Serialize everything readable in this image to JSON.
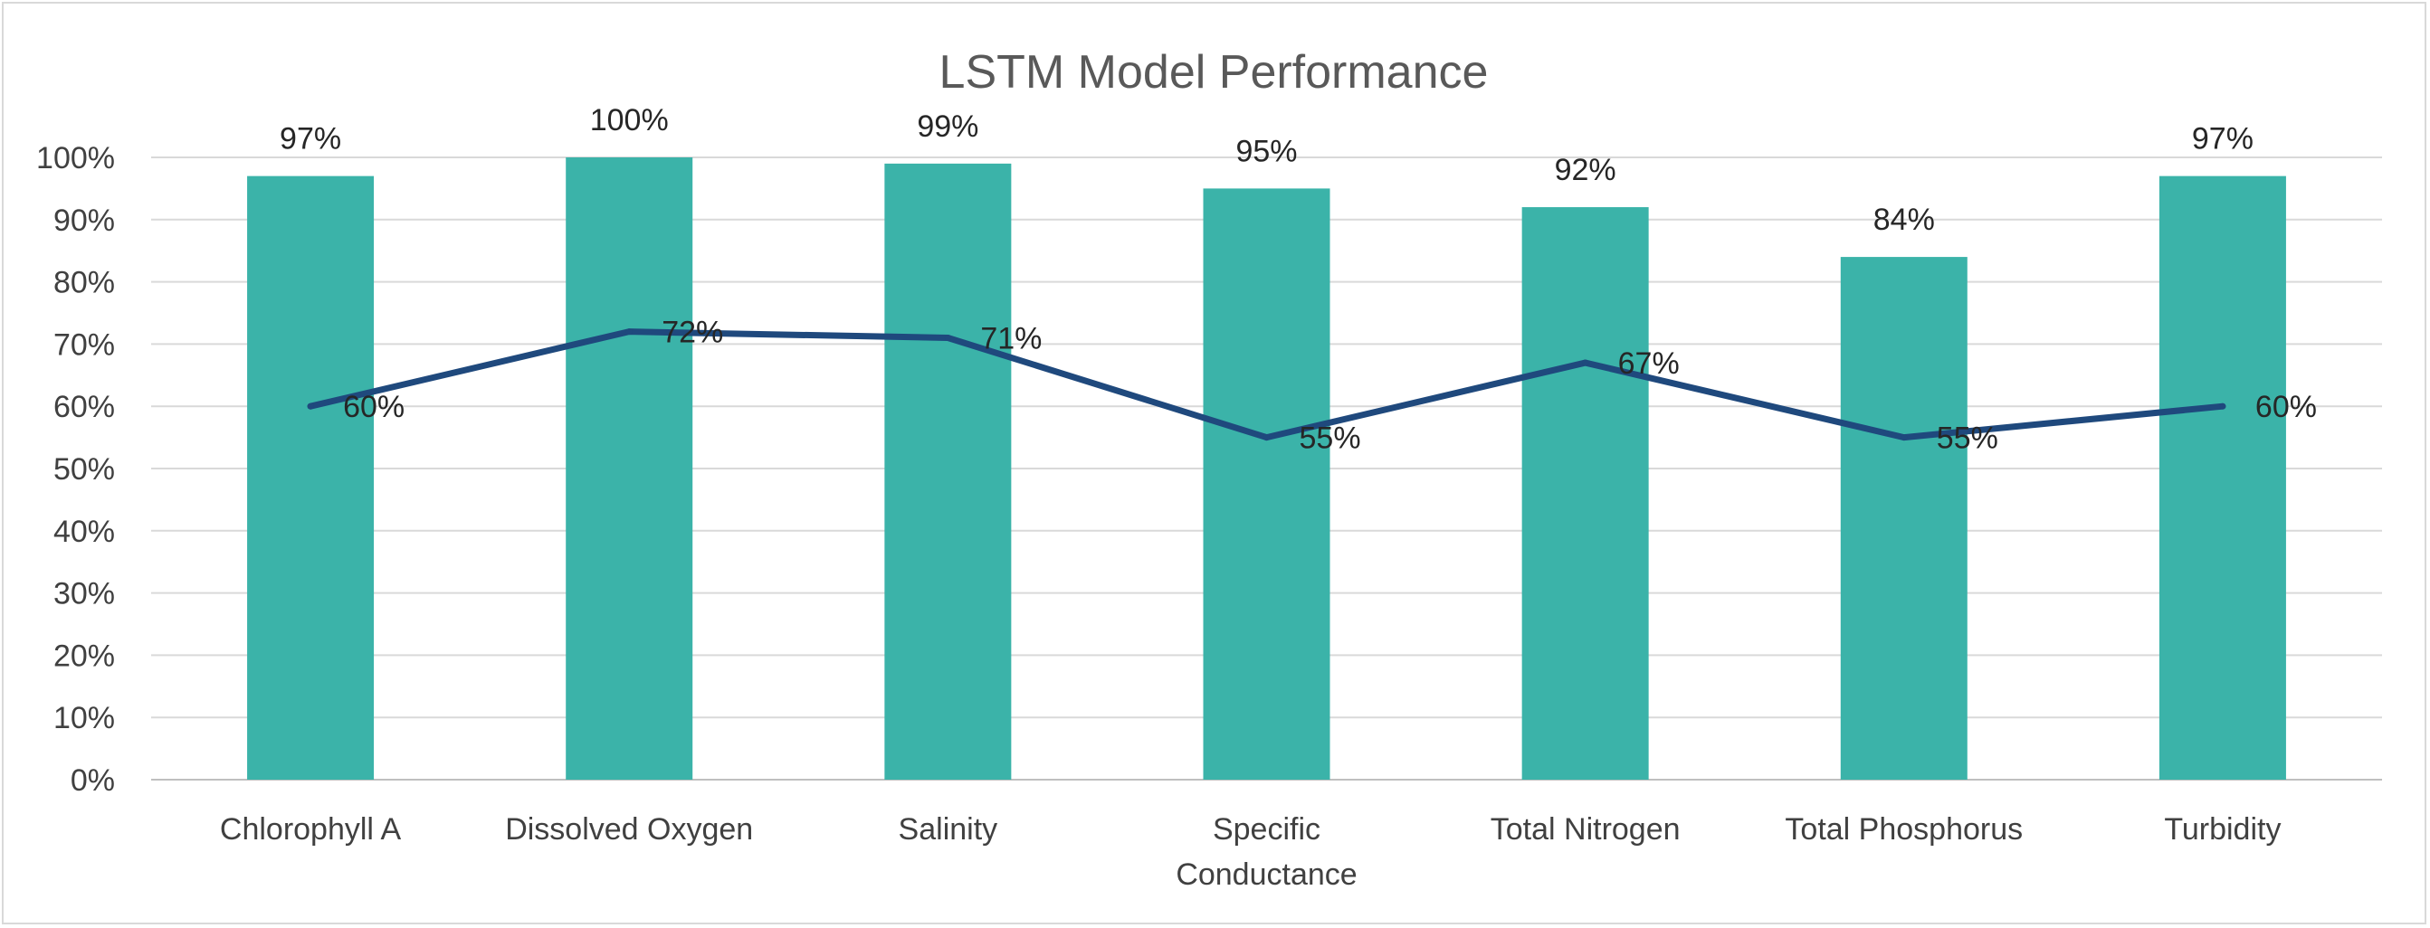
{
  "chart_data": {
    "type": "bar",
    "title": "LSTM Model Performance",
    "xlabel": "",
    "ylabel": "",
    "categories": [
      [
        "Chlorophyll A"
      ],
      [
        "Dissolved Oxygen"
      ],
      [
        "Salinity"
      ],
      [
        "Specific",
        "Conductance"
      ],
      [
        "Total Nitrogen"
      ],
      [
        "Total Phosphorus"
      ],
      [
        "Turbidity"
      ]
    ],
    "series": [
      {
        "type": "bar",
        "color": "#3bb3a9",
        "values": [
          0.97,
          1.0,
          0.99,
          0.95,
          0.92,
          0.84,
          0.97
        ],
        "labels": [
          "97%",
          "100%",
          "99%",
          "95%",
          "92%",
          "84%",
          "97%"
        ]
      },
      {
        "type": "line",
        "color": "#1f497d",
        "values": [
          0.6,
          0.72,
          0.71,
          0.55,
          0.67,
          0.55,
          0.6
        ],
        "labels": [
          "60%",
          "72%",
          "71%",
          "55%",
          "67%",
          "55%",
          "60%"
        ]
      }
    ],
    "ylim": [
      0,
      1
    ],
    "yticks": [
      "0%",
      "10%",
      "20%",
      "30%",
      "40%",
      "50%",
      "60%",
      "70%",
      "80%",
      "90%",
      "100%"
    ],
    "grid": true,
    "legend": "none"
  }
}
